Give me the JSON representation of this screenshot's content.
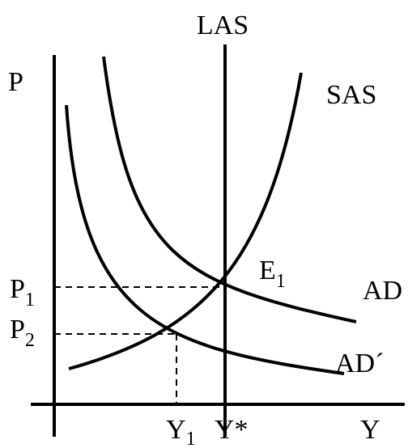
{
  "labels": {
    "las": "LAS",
    "p_axis": "P",
    "sas": "SAS",
    "e1": {
      "text": "E",
      "sub": "1"
    },
    "p1": {
      "text": "P",
      "sub": "1"
    },
    "p2": {
      "text": "P",
      "sub": "2"
    },
    "ad": "AD",
    "ad_prime": "AD´",
    "y1": {
      "text": "Y",
      "sub": "1"
    },
    "y_star": "Y*",
    "y_axis": "Y"
  }
}
